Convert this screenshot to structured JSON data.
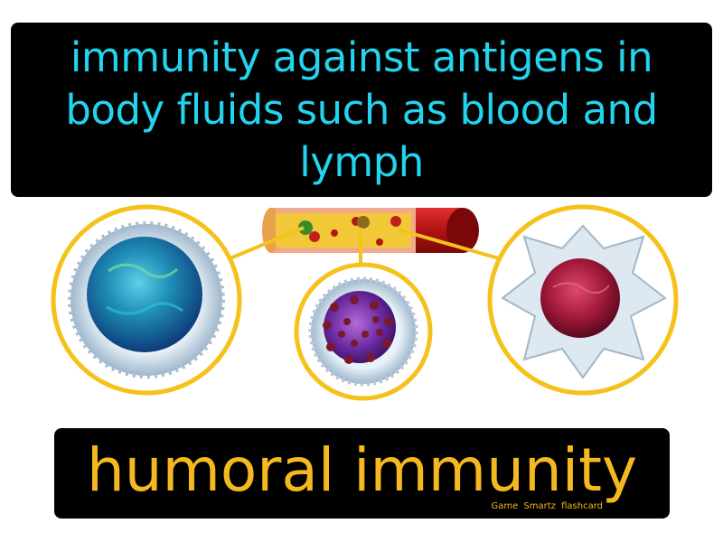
{
  "card": {
    "definition": "immunity against antigens in body fluids such as blood and lymph",
    "term": "humoral immunity",
    "brand": "Game Smartz flashcard"
  },
  "colors": {
    "definition_text": "#22d4ee",
    "term_text": "#f5b820",
    "ring": "#f5c21b",
    "panel": "#000000",
    "vessel": "#c81818"
  },
  "illustration": {
    "icons": [
      "blood-vessel-icon",
      "lymphocyte-cell-icon",
      "granulocyte-cell-icon",
      "monocyte-cell-icon"
    ]
  }
}
